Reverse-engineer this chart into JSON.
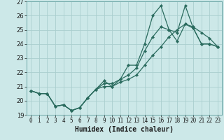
{
  "title": "",
  "xlabel": "Humidex (Indice chaleur)",
  "ylabel": "",
  "background_color": "#cce8e8",
  "line_color": "#2a6b5e",
  "grid_color": "#aacece",
  "ylim": [
    19,
    27
  ],
  "xlim": [
    -0.5,
    23.5
  ],
  "yticks": [
    19,
    20,
    21,
    22,
    23,
    24,
    25,
    26,
    27
  ],
  "xticks": [
    0,
    1,
    2,
    3,
    4,
    5,
    6,
    7,
    8,
    9,
    10,
    11,
    12,
    13,
    14,
    15,
    16,
    17,
    18,
    19,
    20,
    21,
    22,
    23
  ],
  "series1": [
    20.7,
    20.5,
    20.5,
    19.6,
    19.7,
    19.3,
    19.5,
    20.2,
    20.8,
    21.4,
    21.0,
    21.5,
    22.5,
    22.5,
    24.0,
    26.0,
    26.7,
    25.0,
    24.8,
    26.7,
    25.1,
    24.0,
    24.0,
    23.8
  ],
  "series2": [
    20.7,
    20.5,
    20.5,
    19.6,
    19.7,
    19.3,
    19.5,
    20.2,
    20.8,
    21.2,
    21.2,
    21.5,
    21.8,
    22.3,
    23.5,
    24.5,
    25.2,
    25.0,
    24.2,
    25.4,
    25.1,
    24.0,
    24.0,
    23.8
  ],
  "series3": [
    20.7,
    20.5,
    20.5,
    19.6,
    19.7,
    19.3,
    19.5,
    20.2,
    20.8,
    21.0,
    21.0,
    21.3,
    21.5,
    21.8,
    22.5,
    23.2,
    23.8,
    24.5,
    25.0,
    25.4,
    25.2,
    24.8,
    24.4,
    23.8
  ]
}
